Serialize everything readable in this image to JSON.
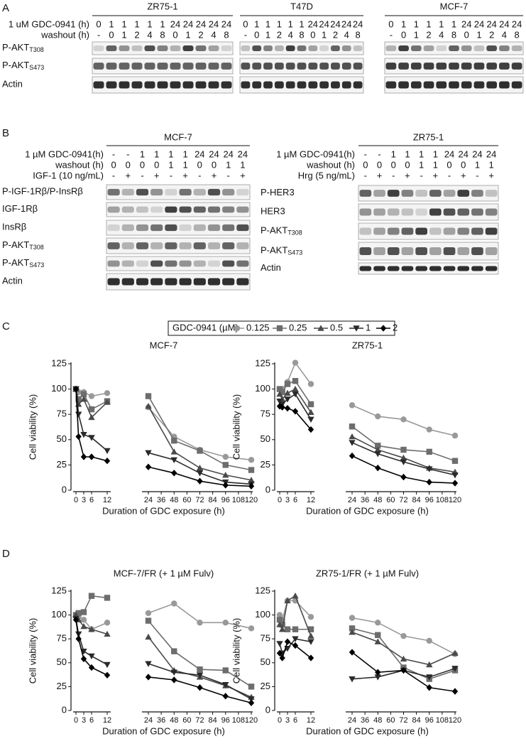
{
  "blots": {
    "A": {
      "panel": "A",
      "row_labels": [
        "1 uM GDC-0941 (h)",
        "washout (h)"
      ],
      "groups": [
        {
          "name": "ZR75-1",
          "rows": [
            [
              0,
              1,
              1,
              1,
              1,
              1,
              24,
              24,
              24,
              24,
              24
            ],
            [
              "-",
              0,
              1,
              2,
              4,
              8,
              0,
              1,
              2,
              4,
              8
            ]
          ]
        },
        {
          "name": "T47D",
          "rows": [
            [
              0,
              1,
              1,
              1,
              1,
              1,
              24,
              24,
              24,
              24,
              24
            ],
            [
              "-",
              0,
              1,
              2,
              4,
              8,
              0,
              1,
              2,
              4,
              8
            ]
          ]
        },
        {
          "name": "MCF-7",
          "rows": [
            [
              0,
              1,
              1,
              1,
              1,
              1,
              24,
              24,
              24,
              24,
              24
            ],
            [
              "-",
              0,
              1,
              2,
              4,
              8,
              0,
              1,
              2,
              4,
              8
            ]
          ]
        }
      ],
      "bands": [
        {
          "label": "P-AKT",
          "site": "T308"
        },
        {
          "label": "P-AKT",
          "site": "S473"
        },
        {
          "label": "Actin"
        }
      ]
    },
    "B": {
      "panel": "B",
      "groups": [
        {
          "name": "MCF-7",
          "row_labels": [
            "1 µM GDC-0941(h)",
            "washout (h)",
            "IGF-1 (10 ng/mL)"
          ],
          "rows": [
            [
              "-",
              "-",
              1,
              1,
              1,
              1,
              24,
              24,
              24,
              24
            ],
            [
              0,
              0,
              0,
              0,
              1,
              1,
              0,
              0,
              1,
              1
            ],
            [
              "-",
              "+",
              "-",
              "+",
              "-",
              "+",
              "-",
              "+",
              "-",
              "+"
            ]
          ],
          "bands": [
            {
              "label": "P-IGF-1Rβ/P-InsRβ"
            },
            {
              "label": "IGF-1Rβ"
            },
            {
              "label": "InsRβ"
            },
            {
              "label": "P-AKT",
              "site": "T308"
            },
            {
              "label": "P-AKT",
              "site": "S473"
            },
            {
              "label": "Actin"
            }
          ]
        },
        {
          "name": "ZR75-1",
          "row_labels": [
            "1 µM GDC-0941(h)",
            "washout (h)",
            "Hrg (5 ng/mL)"
          ],
          "rows": [
            [
              "-",
              "-",
              1,
              1,
              1,
              1,
              24,
              24,
              24,
              24
            ],
            [
              0,
              0,
              0,
              0,
              1,
              1,
              0,
              0,
              1,
              1
            ],
            [
              "-",
              "+",
              "-",
              "+",
              "-",
              "+",
              "-",
              "+",
              "-",
              "+"
            ]
          ],
          "bands": [
            {
              "label": "P-HER3"
            },
            {
              "label": "HER3"
            },
            {
              "label": "P-AKT",
              "site": "T308"
            },
            {
              "label": "P-AKT",
              "site": "S473"
            },
            {
              "label": "Actin"
            }
          ]
        }
      ]
    }
  },
  "chart_data": [
    {
      "type": "line",
      "panel": "C",
      "title": "MCF-7",
      "legend_title": "GDC-0941 (µM)",
      "x_label": "Duration of GDC exposure (h)",
      "y_label": "Cell viability (%)",
      "xlim": [
        0,
        120
      ],
      "axis_break": [
        12,
        24
      ],
      "xticks": [
        0,
        3,
        6,
        12,
        24,
        36,
        48,
        60,
        72,
        84,
        96,
        108,
        120
      ],
      "ylim": [
        0,
        125
      ],
      "yticks": [
        0,
        25,
        50,
        75,
        100,
        125
      ],
      "x": [
        0,
        1,
        3,
        6,
        12,
        24,
        48,
        72,
        96,
        120
      ],
      "series": [
        {
          "name": "0.125",
          "color": "#999999",
          "marker": "circle",
          "values": [
            100,
            97,
            97,
            93,
            96,
            82,
            53,
            40,
            33,
            30
          ]
        },
        {
          "name": "0.25",
          "color": "#6d6d6d",
          "marker": "square",
          "values": [
            100,
            90,
            95,
            80,
            88,
            93,
            49,
            39,
            25,
            20
          ]
        },
        {
          "name": "0.5",
          "color": "#4a4a4a",
          "marker": "triangle-up",
          "values": [
            100,
            85,
            90,
            72,
            87,
            83,
            38,
            22,
            15,
            10
          ]
        },
        {
          "name": "1",
          "color": "#2a2a2a",
          "marker": "triangle-down",
          "values": [
            100,
            75,
            55,
            52,
            39,
            37,
            30,
            17,
            8,
            6
          ]
        },
        {
          "name": "2",
          "color": "#000000",
          "marker": "diamond",
          "values": [
            100,
            53,
            33,
            33,
            29,
            23,
            17,
            9,
            5,
            4
          ]
        }
      ]
    },
    {
      "type": "line",
      "title": "ZR75-1",
      "x_label": "Duration of GDC exposure (h)",
      "y_label": "Cell viability (%)",
      "xlim": [
        0,
        120
      ],
      "axis_break": [
        12,
        24
      ],
      "xticks": [
        0,
        3,
        6,
        12,
        24,
        36,
        48,
        60,
        72,
        84,
        96,
        108,
        120
      ],
      "ylim": [
        0,
        125
      ],
      "yticks": [
        0,
        25,
        50,
        75,
        100,
        125
      ],
      "x": [
        0,
        1,
        3,
        6,
        12,
        24,
        48,
        72,
        96,
        120
      ],
      "series": [
        {
          "name": "0.125",
          "color": "#999999",
          "marker": "circle",
          "values": [
            100,
            100,
            107,
            126,
            105,
            84,
            73,
            70,
            60,
            54
          ]
        },
        {
          "name": "0.25",
          "color": "#6d6d6d",
          "marker": "square",
          "values": [
            100,
            97,
            105,
            108,
            85,
            63,
            44,
            40,
            38,
            29
          ]
        },
        {
          "name": "0.5",
          "color": "#4a4a4a",
          "marker": "triangle-up",
          "values": [
            95,
            90,
            96,
            100,
            77,
            53,
            40,
            32,
            22,
            18
          ]
        },
        {
          "name": "1",
          "color": "#2a2a2a",
          "marker": "triangle-down",
          "values": [
            88,
            85,
            90,
            95,
            70,
            47,
            36,
            28,
            21,
            15
          ]
        },
        {
          "name": "2",
          "color": "#000000",
          "marker": "diamond",
          "values": [
            83,
            82,
            81,
            78,
            60,
            34,
            22,
            13,
            8,
            7
          ]
        }
      ]
    },
    {
      "type": "line",
      "panel": "D",
      "title": "MCF-7/FR (+ 1 µM Fulv)",
      "x_label": "Duration of GDC exposure (h)",
      "y_label": "Cell viability (%)",
      "xlim": [
        0,
        120
      ],
      "axis_break": [
        12,
        24
      ],
      "xticks": [
        0,
        3,
        6,
        12,
        24,
        36,
        48,
        60,
        72,
        84,
        96,
        108,
        120
      ],
      "ylim": [
        0,
        125
      ],
      "yticks": [
        0,
        25,
        50,
        75,
        100,
        125
      ],
      "x": [
        0,
        1,
        3,
        6,
        12,
        24,
        48,
        72,
        96,
        120
      ],
      "series": [
        {
          "name": "0.125",
          "color": "#999999",
          "marker": "circle",
          "values": [
            100,
            98,
            95,
            85,
            92,
            102,
            112,
            92,
            92,
            86
          ]
        },
        {
          "name": "0.25",
          "color": "#6d6d6d",
          "marker": "square",
          "values": [
            100,
            102,
            103,
            120,
            118,
            94,
            62,
            43,
            42,
            25
          ]
        },
        {
          "name": "0.5",
          "color": "#4a4a4a",
          "marker": "triangle-up",
          "values": [
            100,
            95,
            88,
            85,
            80,
            77,
            42,
            35,
            26,
            14
          ]
        },
        {
          "name": "1",
          "color": "#2a2a2a",
          "marker": "triangle-down",
          "values": [
            96,
            80,
            62,
            57,
            48,
            49,
            40,
            37,
            27,
            12
          ]
        },
        {
          "name": "2",
          "color": "#000000",
          "marker": "diamond",
          "values": [
            95,
            75,
            54,
            45,
            37,
            35,
            32,
            24,
            15,
            8
          ]
        }
      ]
    },
    {
      "type": "line",
      "title": "ZR75-1/FR (+ 1 µM Fulv)",
      "x_label": "Duration of GDC exposure (h)",
      "y_label": "Cell viability (%)",
      "xlim": [
        0,
        120
      ],
      "axis_break": [
        12,
        24
      ],
      "xticks": [
        0,
        3,
        6,
        12,
        24,
        36,
        48,
        60,
        72,
        84,
        96,
        108,
        120
      ],
      "ylim": [
        0,
        125
      ],
      "yticks": [
        0,
        25,
        50,
        75,
        100,
        125
      ],
      "x": [
        0,
        1,
        3,
        6,
        12,
        24,
        48,
        72,
        96,
        120
      ],
      "series": [
        {
          "name": "0.125",
          "color": "#999999",
          "marker": "circle",
          "values": [
            100,
            95,
            115,
            115,
            98,
            97,
            92,
            78,
            73,
            59
          ]
        },
        {
          "name": "0.25",
          "color": "#6d6d6d",
          "marker": "square",
          "values": [
            95,
            90,
            85,
            85,
            85,
            86,
            79,
            45,
            33,
            42
          ]
        },
        {
          "name": "0.5",
          "color": "#4a4a4a",
          "marker": "triangle-up",
          "values": [
            90,
            85,
            115,
            120,
            78,
            82,
            72,
            54,
            48,
            60
          ]
        },
        {
          "name": "1",
          "color": "#2a2a2a",
          "marker": "triangle-down",
          "values": [
            70,
            60,
            65,
            75,
            72,
            33,
            35,
            42,
            35,
            44
          ]
        },
        {
          "name": "2",
          "color": "#000000",
          "marker": "diamond",
          "values": [
            60,
            55,
            72,
            68,
            55,
            61,
            40,
            42,
            24,
            20
          ]
        }
      ]
    }
  ]
}
